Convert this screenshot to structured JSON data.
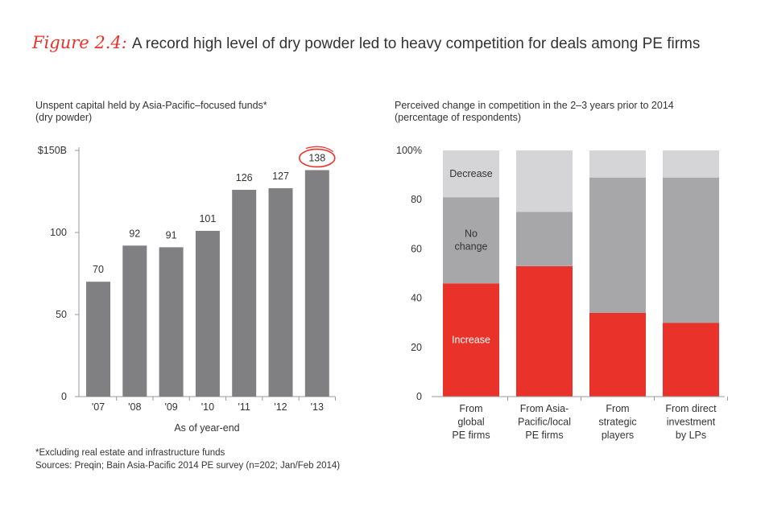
{
  "title": {
    "figure_label": "Figure 2.4:",
    "text": "A record high level of dry powder led to heavy competition for deals among PE firms"
  },
  "chart_data": [
    {
      "type": "bar",
      "title_line1": "Unspent capital held by Asia-Pacific–focused funds*",
      "title_line2": "(dry powder)",
      "categories": [
        "'07",
        "'08",
        "'09",
        "'10",
        "'11",
        "'12",
        "'13"
      ],
      "values": [
        70,
        92,
        91,
        101,
        126,
        127,
        138
      ],
      "highlighted_value": 138,
      "xlabel": "As of year-end",
      "ylim": [
        0,
        150
      ],
      "yticks": [
        0,
        50,
        100,
        150
      ],
      "ytick_labels": [
        "0",
        "50",
        "100",
        "$150B"
      ],
      "color": "#808083",
      "highlight_color": "#e8322a"
    },
    {
      "type": "bar",
      "stacked": true,
      "title_line1": "Perceived change in competition in the 2–3 years prior to 2014",
      "title_line2": "(percentage of respondents)",
      "category_lines": [
        [
          "From",
          "global",
          "PE firms"
        ],
        [
          "From Asia-",
          "Pacific/local",
          "PE firms"
        ],
        [
          "From",
          "strategic",
          "players"
        ],
        [
          "From direct",
          "investment",
          "by LPs"
        ]
      ],
      "ylim": [
        0,
        100
      ],
      "yticks": [
        0,
        20,
        40,
        60,
        80,
        100
      ],
      "ytick_labels": [
        "0",
        "20",
        "40",
        "60",
        "80",
        "100%"
      ],
      "series": [
        {
          "name": "Increase",
          "label_lines": [
            "Increase"
          ],
          "color": "#e8322a",
          "values": [
            46,
            53,
            34,
            30
          ]
        },
        {
          "name": "No change",
          "label_lines": [
            "No",
            "change"
          ],
          "color": "#a7a7aa",
          "values": [
            35,
            22,
            55,
            59
          ]
        },
        {
          "name": "Decrease",
          "label_lines": [
            "Decrease"
          ],
          "color": "#d5d5d7",
          "values": [
            19,
            25,
            11,
            11
          ]
        }
      ]
    }
  ],
  "footnotes": {
    "line1": "*Excluding real estate and infrastructure funds",
    "line2": "Sources: Preqin; Bain Asia-Pacific 2014 PE survey (n=202; Jan/Feb 2014)"
  }
}
